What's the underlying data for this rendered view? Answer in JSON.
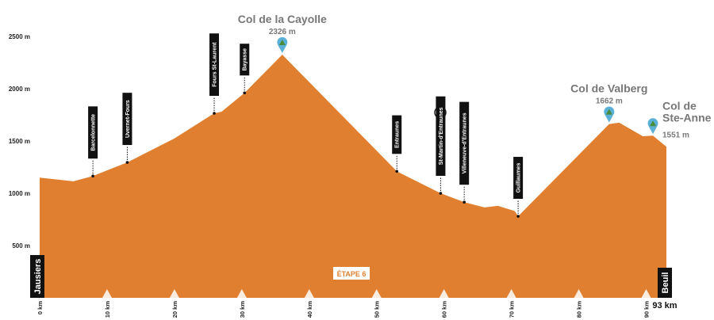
{
  "chart_data": {
    "type": "area",
    "color": "#e07f2f",
    "x": [
      0,
      5,
      7.9,
      13,
      20,
      25.9,
      27,
      30.4,
      36,
      53,
      59.5,
      63,
      66,
      68,
      70.5,
      71,
      84.5,
      86,
      89.5,
      91,
      93
    ],
    "values": [
      1150,
      1115,
      1165,
      1295,
      1525,
      1765,
      1780,
      1960,
      2326,
      1210,
      1000,
      915,
      865,
      880,
      830,
      780,
      1662,
      1675,
      1545,
      1551,
      1445
    ],
    "xlim": [
      0,
      93
    ],
    "ylim": [
      0,
      2500
    ],
    "xticks": [
      {
        "value": 0,
        "label": "0 km"
      },
      {
        "value": 10,
        "label": "10 km"
      },
      {
        "value": 20,
        "label": "20 km"
      },
      {
        "value": 30,
        "label": "30 km"
      },
      {
        "value": 40,
        "label": "40 km"
      },
      {
        "value": 50,
        "label": "50 km"
      },
      {
        "value": 60,
        "label": "60 km"
      },
      {
        "value": 70,
        "label": "70 km"
      },
      {
        "value": 80,
        "label": "80 km"
      },
      {
        "value": 90,
        "label": "90 km"
      }
    ],
    "yticks": [
      {
        "value": 500,
        "label": "500 m"
      },
      {
        "value": 1000,
        "label": "1000 m"
      },
      {
        "value": 1500,
        "label": "1500 m"
      },
      {
        "value": 2000,
        "label": "2000 m"
      },
      {
        "value": 2500,
        "label": "2500 m"
      }
    ],
    "start_label": "Jausiers",
    "end_label": "Beuil",
    "end_distance_label": "93 km",
    "stage_label": "ÉTAPE 6",
    "towns": [
      {
        "name": "Barcelonnette",
        "x": 7.9,
        "y": 1165
      },
      {
        "name": "Uvernet-Fours",
        "x": 13,
        "y": 1295
      },
      {
        "name": "Fours St-Laurent",
        "x": 25.9,
        "y": 1765
      },
      {
        "name": "Bayasse",
        "x": 30.4,
        "y": 1960
      },
      {
        "name": "Entraunes",
        "x": 53,
        "y": 1210
      },
      {
        "name": "St-Martin-d'Entraunes",
        "x": 59.5,
        "y": 1000
      },
      {
        "name": "Villeneuve-d'Entraunes",
        "x": 63,
        "y": 915
      },
      {
        "name": "Guillaumes",
        "x": 71,
        "y": 780
      }
    ],
    "summits": [
      {
        "name_lines": [
          "Col de la Cayolle"
        ],
        "x": 36,
        "elevation": 2326,
        "elevation_label": "2326 m",
        "align": "middle"
      },
      {
        "name_lines": [
          "Col de Valberg"
        ],
        "x": 84.5,
        "elevation": 1662,
        "elevation_label": "1662 m",
        "align": "middle"
      },
      {
        "name_lines": [
          "Col de",
          "Ste-Anne"
        ],
        "x": 91,
        "elevation": 1551,
        "elevation_label": "1551 m",
        "align": "start"
      }
    ]
  }
}
